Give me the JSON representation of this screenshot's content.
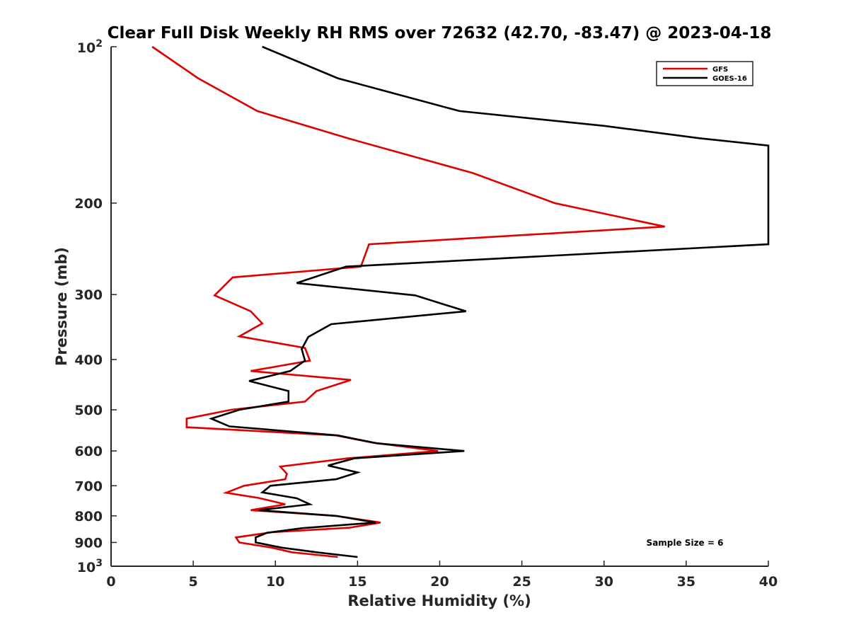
{
  "chart_data": {
    "type": "line",
    "title": "Clear Full Disk Weekly RH RMS over 72632 (42.70, -83.47) @ 2023-04-18",
    "xlabel": "Relative Humidity (%)",
    "ylabel": "Pressure (mb)",
    "xlim": [
      0,
      40
    ],
    "ylim": [
      100,
      1000
    ],
    "yscale": "log",
    "y_reversed": true,
    "grid": false,
    "x_ticks": [
      0,
      5,
      10,
      15,
      20,
      25,
      30,
      35,
      40
    ],
    "x_tick_labels": [
      "0",
      "5",
      "10",
      "15",
      "20",
      "25",
      "30",
      "35",
      "40"
    ],
    "y_ticks": [
      100,
      200,
      300,
      400,
      500,
      600,
      700,
      800,
      900,
      1000
    ],
    "y_tick_labels": [
      "",
      "200",
      "300",
      "400",
      "500",
      "600",
      "700",
      "800",
      "900",
      ""
    ],
    "y_tick_power_labels": [
      {
        "value": 100,
        "base": "10",
        "exp": "2"
      },
      {
        "value": 1000,
        "base": "10",
        "exp": "3"
      }
    ],
    "legend_position": "top-right",
    "annotation": "Sample Size = 6",
    "series": [
      {
        "name": "GFS",
        "color": "#e00000",
        "points": [
          [
            2.5,
            100
          ],
          [
            5.3,
            115
          ],
          [
            8.9,
            133
          ],
          [
            14.4,
            150
          ],
          [
            22.0,
            175
          ],
          [
            27.0,
            200
          ],
          [
            33.7,
            222
          ],
          [
            15.7,
            240
          ],
          [
            15.2,
            265
          ],
          [
            7.4,
            278
          ],
          [
            6.3,
            301
          ],
          [
            8.5,
            323
          ],
          [
            9.2,
            341
          ],
          [
            7.8,
            361
          ],
          [
            11.8,
            380
          ],
          [
            12.1,
            402
          ],
          [
            8.5,
            421
          ],
          [
            14.6,
            438
          ],
          [
            12.5,
            460
          ],
          [
            11.8,
            482
          ],
          [
            7.3,
            500
          ],
          [
            4.6,
            520
          ],
          [
            4.6,
            540
          ],
          [
            13.7,
            560
          ],
          [
            15.9,
            578
          ],
          [
            19.9,
            600
          ],
          [
            14.4,
            620
          ],
          [
            10.3,
            643
          ],
          [
            10.7,
            664
          ],
          [
            10.6,
            680
          ],
          [
            8.1,
            700
          ],
          [
            7.0,
            722
          ],
          [
            9.0,
            739
          ],
          [
            10.6,
            760
          ],
          [
            8.5,
            780
          ],
          [
            13.7,
            800
          ],
          [
            16.4,
            824
          ],
          [
            14.5,
            843
          ],
          [
            9.8,
            860
          ],
          [
            7.6,
            880
          ],
          [
            7.8,
            900
          ],
          [
            9.8,
            921
          ],
          [
            11.0,
            940
          ],
          [
            13.8,
            960
          ]
        ]
      },
      {
        "name": "GOES-16",
        "color": "#000000",
        "points": [
          [
            9.2,
            100
          ],
          [
            13.8,
            115
          ],
          [
            21.2,
            133
          ],
          [
            30.0,
            142
          ],
          [
            35.8,
            150
          ],
          [
            40.0,
            155
          ],
          [
            40.0,
            240
          ],
          [
            14.3,
            265
          ],
          [
            11.3,
            285
          ],
          [
            18.5,
            301
          ],
          [
            21.6,
            323
          ],
          [
            13.4,
            342
          ],
          [
            12.0,
            362
          ],
          [
            11.6,
            382
          ],
          [
            11.8,
            402
          ],
          [
            10.9,
            421
          ],
          [
            8.4,
            440
          ],
          [
            10.8,
            460
          ],
          [
            10.8,
            482
          ],
          [
            7.8,
            500
          ],
          [
            6.1,
            520
          ],
          [
            7.2,
            538
          ],
          [
            13.8,
            560
          ],
          [
            16.2,
            580
          ],
          [
            21.5,
            600
          ],
          [
            14.8,
            620
          ],
          [
            13.2,
            640
          ],
          [
            15.0,
            660
          ],
          [
            13.7,
            680
          ],
          [
            9.7,
            700
          ],
          [
            9.2,
            721
          ],
          [
            11.3,
            740
          ],
          [
            12.1,
            760
          ],
          [
            9.0,
            780
          ],
          [
            13.7,
            800
          ],
          [
            16.1,
            824
          ],
          [
            11.6,
            845
          ],
          [
            9.5,
            862
          ],
          [
            8.8,
            880
          ],
          [
            8.8,
            900
          ],
          [
            10.4,
            921
          ],
          [
            12.6,
            941
          ],
          [
            15.0,
            960
          ]
        ]
      }
    ]
  }
}
